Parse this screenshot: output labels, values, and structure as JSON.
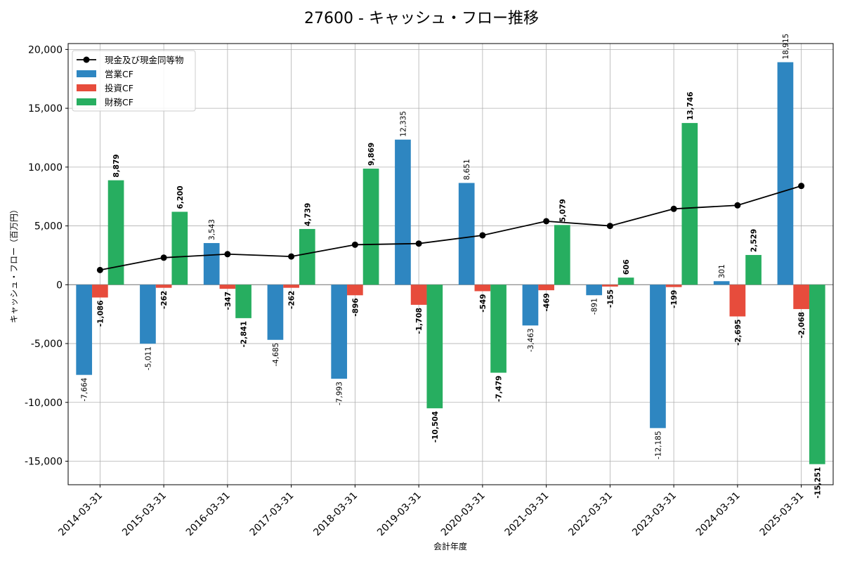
{
  "chart_data": {
    "type": "bar",
    "title": "27600 - キャッシュ・フロー推移",
    "xlabel": "会計年度",
    "ylabel": "キャッシュ・フロー（百万円）",
    "categories": [
      "2014-03-31",
      "2015-03-31",
      "2016-03-31",
      "2017-03-31",
      "2018-03-31",
      "2019-03-31",
      "2020-03-31",
      "2021-03-31",
      "2022-03-31",
      "2023-03-31",
      "2024-03-31",
      "2025-03-31"
    ],
    "ylim": [
      -17000,
      20500
    ],
    "yticks": [
      -15000,
      -10000,
      -5000,
      0,
      5000,
      10000,
      15000,
      20000
    ],
    "ytick_labels": [
      "-15,000",
      "-10,000",
      "-5,000",
      "0",
      "5,000",
      "10,000",
      "15,000",
      "20,000"
    ],
    "grid": true,
    "legend_position": "top-left",
    "series": [
      {
        "name": "営業CF",
        "type": "bar",
        "color": "#2e86c1",
        "values": [
          -7664,
          -5011,
          3543,
          -4685,
          -7993,
          12335,
          8651,
          -3463,
          -891,
          -12185,
          301,
          18915
        ],
        "labels": [
          "-7,664",
          "-5,011",
          "3,543",
          "-4,685",
          "-7,993",
          "12,335",
          "8,651",
          "-3,463",
          "-891",
          "-12,185",
          "301",
          "18,915"
        ]
      },
      {
        "name": "投資CF",
        "type": "bar",
        "color": "#e74c3c",
        "values": [
          -1086,
          -262,
          -347,
          -262,
          -896,
          -1708,
          -549,
          -469,
          -155,
          -199,
          -2695,
          -2068
        ],
        "labels": [
          "-1,086",
          "-262",
          "-347",
          "-262",
          "-896",
          "-1,708",
          "-549",
          "-469",
          "-155",
          "-199",
          "-2,695",
          "-2,068"
        ]
      },
      {
        "name": "財務CF",
        "type": "bar",
        "color": "#27ae60",
        "values": [
          8879,
          6200,
          -2841,
          4739,
          9869,
          -10504,
          -7479,
          5079,
          606,
          13746,
          2529,
          -15251
        ],
        "labels": [
          "8,879",
          "6,200",
          "-2,841",
          "4,739",
          "9,869",
          "-10,504",
          "-7,479",
          "5,079",
          "606",
          "13,746",
          "2,529",
          "-15,251"
        ]
      },
      {
        "name": "現金及び現金同等物",
        "type": "line",
        "color": "#000000",
        "values": [
          1250,
          2300,
          2600,
          2400,
          3400,
          3500,
          4200,
          5400,
          5000,
          6450,
          6750,
          8400
        ]
      }
    ]
  }
}
